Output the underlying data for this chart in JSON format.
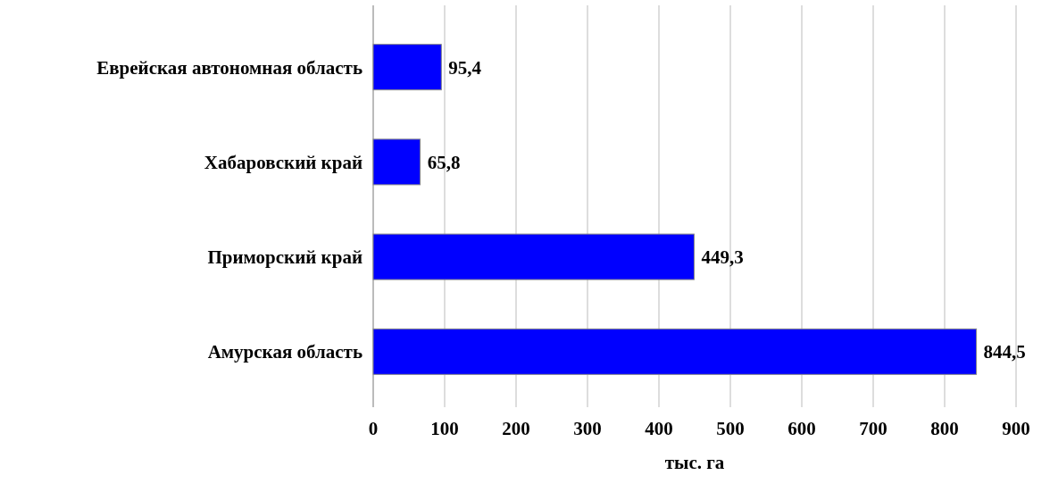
{
  "chart_data": {
    "type": "bar",
    "orientation": "horizontal",
    "xlabel": "тыс. га",
    "categories": [
      "Еврейская автономная область",
      "Хабаровский край",
      "Приморский край",
      "Амурская область"
    ],
    "values": [
      95.4,
      65.8,
      449.3,
      844.5
    ],
    "value_labels": [
      "95,4",
      "65,8",
      "449,3",
      "844,5"
    ],
    "color": "#0000ff",
    "xlim": [
      0,
      900
    ],
    "xticks": [
      0,
      100,
      200,
      300,
      400,
      500,
      600,
      700,
      800,
      900
    ],
    "grid": "x"
  }
}
